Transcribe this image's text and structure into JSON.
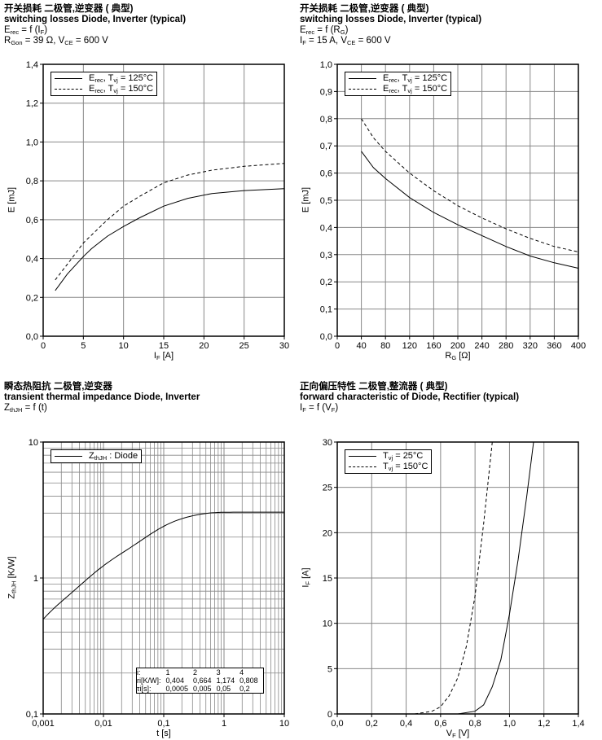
{
  "charts": [
    {
      "id": "tl",
      "title_cn": "开关损耗 二极管,逆变器 ( 典型)",
      "title_en": "switching losses  Diode, Inverter (typical)",
      "lines": [
        [
          "E",
          {
            "sub": "rec"
          },
          " = f (I",
          {
            "sub": "F"
          },
          ")"
        ],
        [
          "R",
          {
            "sub": "Gon"
          },
          " = 39 Ω, V",
          {
            "sub": "CE"
          },
          " = 600 V"
        ]
      ],
      "ylabel": [
        "E [mJ]"
      ],
      "xlabel": [
        "I",
        {
          "sub": "F"
        },
        " [A]"
      ],
      "legend": [
        [
          "E",
          {
            "sub": "rec"
          },
          ", T",
          {
            "sub": "vj"
          },
          " = 125°C"
        ],
        [
          "E",
          {
            "sub": "rec"
          },
          ", T",
          {
            "sub": "vj"
          },
          " = 150°C"
        ]
      ]
    },
    {
      "id": "tr",
      "title_cn": "开关损耗 二极管,逆变器 ( 典型)",
      "title_en": "switching losses  Diode, Inverter (typical)",
      "lines": [
        [
          "E",
          {
            "sub": "rec"
          },
          " = f (R",
          {
            "sub": "G"
          },
          ")"
        ],
        [
          "I",
          {
            "sub": "F"
          },
          " = 15 A, V",
          {
            "sub": "CE"
          },
          " = 600 V"
        ]
      ],
      "ylabel": [
        "E [mJ]"
      ],
      "xlabel": [
        "R",
        {
          "sub": "G"
        },
        " [Ω]"
      ],
      "legend": [
        [
          "E",
          {
            "sub": "rec"
          },
          ", T",
          {
            "sub": "vj"
          },
          " = 125°C"
        ],
        [
          "E",
          {
            "sub": "rec"
          },
          ", T",
          {
            "sub": "vj"
          },
          " = 150°C"
        ]
      ]
    },
    {
      "id": "bl",
      "title_cn": "瞬态热阻抗  二极管,逆变器",
      "title_en": "transient thermal impedance  Diode, Inverter",
      "lines": [
        [
          "Z",
          {
            "sub": "thJH"
          },
          " = f (t)"
        ]
      ],
      "ylabel": [
        "Z",
        {
          "sub": "thJH"
        },
        " [K/W]"
      ],
      "xlabel": [
        "t [s]"
      ],
      "legend": [
        [
          "Z",
          {
            "sub": "thJH"
          },
          " : Diode"
        ]
      ],
      "table": {
        "rows": [
          [
            "i:",
            "1",
            "2",
            "3",
            "4"
          ],
          [
            "ri[K/W]:",
            "0,404",
            "0,664",
            "1,174",
            "0,808"
          ],
          [
            "τi[s]:",
            "0,0005",
            "0,005",
            "0,05",
            "0,2"
          ]
        ]
      }
    },
    {
      "id": "br",
      "title_cn": "正向偏压特性  二极管,整流器 ( 典型)",
      "title_en": "forward characteristic of  Diode, Rectifier (typical)",
      "lines": [
        [
          "I",
          {
            "sub": "F"
          },
          " = f (V",
          {
            "sub": "F"
          },
          ")"
        ]
      ],
      "ylabel": [
        "I",
        {
          "sub": "F"
        },
        " [A]"
      ],
      "xlabel": [
        "V",
        {
          "sub": "F"
        },
        " [V]"
      ],
      "legend": [
        [
          "T",
          {
            "sub": "vj"
          },
          " = 25°C"
        ],
        [
          "T",
          {
            "sub": "vj"
          },
          " = 150°C"
        ]
      ]
    }
  ],
  "chart_data": [
    {
      "type": "line",
      "title": "switching losses Diode, Inverter (typical) Erec = f(IF)",
      "xlabel": "IF [A]",
      "ylabel": "E [mJ]",
      "xlim": [
        0,
        30
      ],
      "ylim": [
        0,
        1.4
      ],
      "xticks": [
        "0",
        "5",
        "10",
        "15",
        "20",
        "25",
        "30"
      ],
      "yticks": [
        "0,0",
        "0,2",
        "0,4",
        "0,6",
        "0,8",
        "1,0",
        "1,2",
        "1,4"
      ],
      "legend": "top-left",
      "grid": true,
      "series": [
        {
          "name": "Erec, Tvj = 125°C",
          "style": "solid",
          "x": [
            1.5,
            3,
            5,
            6,
            8,
            10,
            12,
            15,
            18,
            21,
            25,
            30
          ],
          "y": [
            0.235,
            0.32,
            0.41,
            0.45,
            0.515,
            0.565,
            0.61,
            0.67,
            0.71,
            0.735,
            0.75,
            0.76
          ]
        },
        {
          "name": "Erec, Tvj = 150°C",
          "style": "dashed",
          "x": [
            1.5,
            3,
            5,
            8,
            10,
            12,
            15,
            18,
            21,
            25,
            30
          ],
          "y": [
            0.29,
            0.37,
            0.48,
            0.6,
            0.67,
            0.72,
            0.79,
            0.83,
            0.855,
            0.875,
            0.89
          ]
        }
      ]
    },
    {
      "type": "line",
      "title": "switching losses Diode, Inverter (typical) Erec = f(RG)",
      "xlabel": "RG [Ω]",
      "ylabel": "E [mJ]",
      "xlim": [
        0,
        400
      ],
      "ylim": [
        0,
        1
      ],
      "xticks": [
        "0",
        "40",
        "80",
        "120",
        "160",
        "200",
        "240",
        "280",
        "320",
        "360",
        "400"
      ],
      "yticks": [
        "0,0",
        "0,1",
        "0,2",
        "0,3",
        "0,4",
        "0,5",
        "0,6",
        "0,7",
        "0,8",
        "0,9",
        "1,0"
      ],
      "legend": "top-left",
      "grid": true,
      "series": [
        {
          "name": "Erec, Tvj = 125°C",
          "style": "solid",
          "x": [
            40,
            60,
            80,
            120,
            160,
            200,
            240,
            280,
            320,
            360,
            400
          ],
          "y": [
            0.68,
            0.62,
            0.58,
            0.51,
            0.455,
            0.41,
            0.37,
            0.33,
            0.295,
            0.27,
            0.25
          ]
        },
        {
          "name": "Erec, Tvj = 150°C",
          "style": "dashed",
          "x": [
            40,
            60,
            80,
            120,
            160,
            200,
            240,
            280,
            320,
            360,
            400
          ],
          "y": [
            0.8,
            0.73,
            0.68,
            0.6,
            0.535,
            0.48,
            0.435,
            0.395,
            0.36,
            0.33,
            0.31
          ]
        }
      ]
    },
    {
      "type": "line",
      "title": "transient thermal impedance Diode, Inverter",
      "xlabel": "t [s]",
      "ylabel": "ZthJH [K/W]",
      "xscale": "log",
      "yscale": "log",
      "xlim": [
        0.001,
        10
      ],
      "ylim": [
        0.1,
        10
      ],
      "xticks": [
        "0,001",
        "0,01",
        "0,1",
        "1",
        "10"
      ],
      "yticks": [
        "0,1",
        "1",
        "10"
      ],
      "legend": "top-left",
      "grid": true,
      "foster": {
        "r": [
          0.404,
          0.664,
          1.174,
          0.808
        ],
        "tau": [
          0.0005,
          0.005,
          0.05,
          0.2
        ]
      },
      "series": [
        {
          "name": "ZthJH : Diode",
          "style": "solid"
        }
      ]
    },
    {
      "type": "line",
      "title": "forward characteristic of Diode, Rectifier (typical)",
      "xlabel": "VF [V]",
      "ylabel": "IF [A]",
      "xlim": [
        0,
        1.4
      ],
      "ylim": [
        0,
        30
      ],
      "xticks": [
        "0,0",
        "0,2",
        "0,4",
        "0,6",
        "0,8",
        "1,0",
        "1,2",
        "1,4"
      ],
      "yticks": [
        "0",
        "5",
        "10",
        "15",
        "20",
        "25",
        "30"
      ],
      "legend": "top-left",
      "grid": true,
      "series": [
        {
          "name": "Tvj = 25°C",
          "style": "solid",
          "x": [
            0.7,
            0.8,
            0.85,
            0.9,
            0.95,
            1.0,
            1.05,
            1.1,
            1.14
          ],
          "y": [
            0,
            0.3,
            1,
            3,
            6,
            11,
            17,
            24,
            30
          ]
        },
        {
          "name": "Tvj = 150°C",
          "style": "dashed",
          "x": [
            0.45,
            0.55,
            0.6,
            0.65,
            0.7,
            0.75,
            0.8,
            0.85,
            0.9
          ],
          "y": [
            0,
            0.3,
            0.8,
            2,
            4,
            7.5,
            13,
            21,
            30
          ]
        }
      ]
    }
  ]
}
